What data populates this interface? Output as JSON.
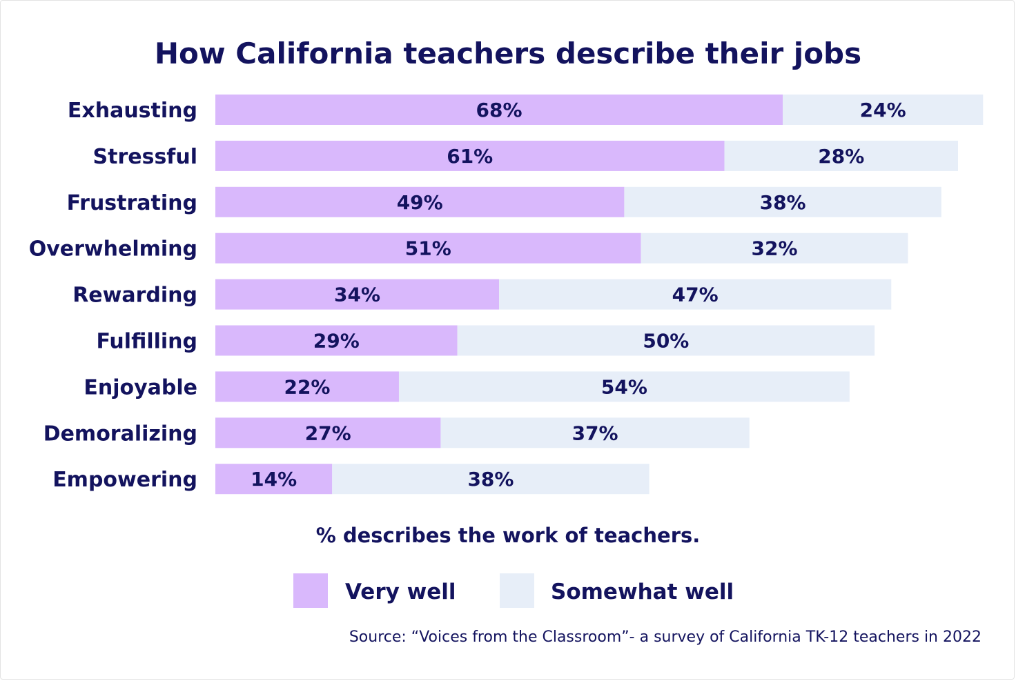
{
  "chart_data": {
    "type": "bar",
    "orientation": "horizontal",
    "stacked": true,
    "title": "How California teachers describe their jobs",
    "categories": [
      "Exhausting",
      "Stressful",
      "Frustrating",
      "Overwhelming",
      "Rewarding",
      "Fulfilling",
      "Enjoyable",
      "Demoralizing",
      "Empowering"
    ],
    "series": [
      {
        "name": "Very well",
        "color": "#d9b8fc",
        "values": [
          68,
          61,
          49,
          51,
          34,
          29,
          22,
          27,
          14
        ]
      },
      {
        "name": "Somewhat well",
        "color": "#e7eef8",
        "values": [
          24,
          28,
          38,
          32,
          47,
          50,
          54,
          37,
          38
        ]
      }
    ],
    "value_suffix": "%",
    "xlabel": "% describes the work of teachers.",
    "ylabel": "",
    "grid": false,
    "legend_position": "bottom",
    "source": "Source: “Voices from the Classroom”- a survey of California TK-12 teachers in 2022"
  }
}
